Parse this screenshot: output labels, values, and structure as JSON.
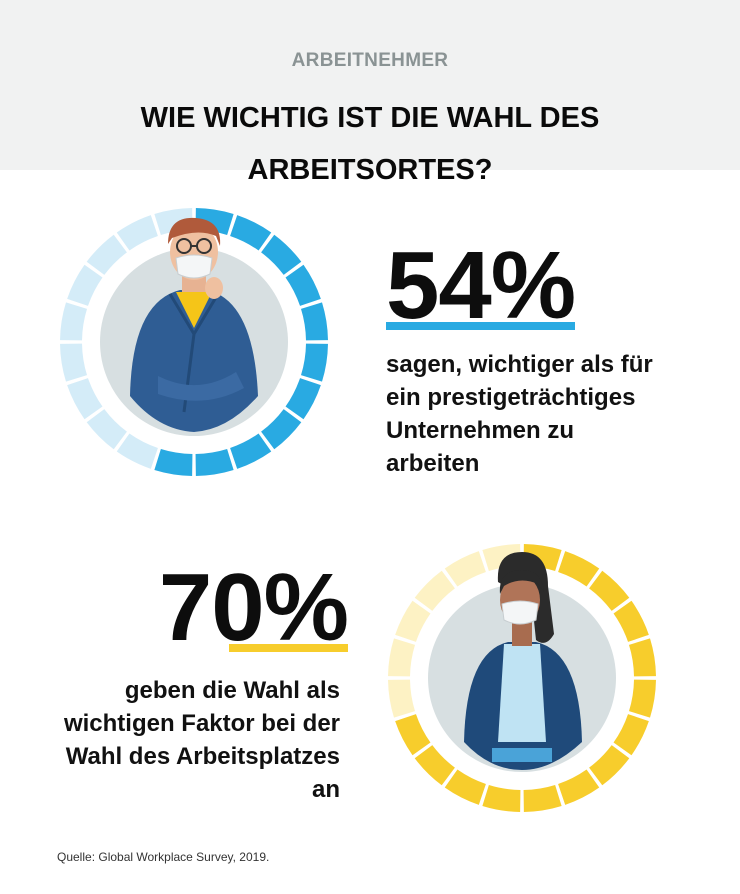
{
  "header": {
    "kicker": "ARBEITNEHMER",
    "title": "WIE WICHTIG IST DIE WAHL DES ARBEITSORTES?"
  },
  "stats": [
    {
      "value": "54%",
      "fraction": 0.54,
      "text_lines": [
        "sagen, wichtiger als für",
        "ein prestigeträchtiges",
        "Unternehmen zu",
        "arbeiten"
      ],
      "accent": "#29aae2",
      "ring_light": "#d4ecf8",
      "illustration": "man-with-mask-glasses-icon"
    },
    {
      "value": "70%",
      "fraction": 0.7,
      "text_lines": [
        "geben die Wahl als",
        "wichtigen Faktor bei der",
        "Wahl des Arbeitsplatzes",
        "an"
      ],
      "accent": "#f7cd2c",
      "ring_light": "#fdf2c4",
      "illustration": "woman-with-mask-icon"
    }
  ],
  "source": "Quelle: Global Workplace Survey, 2019."
}
